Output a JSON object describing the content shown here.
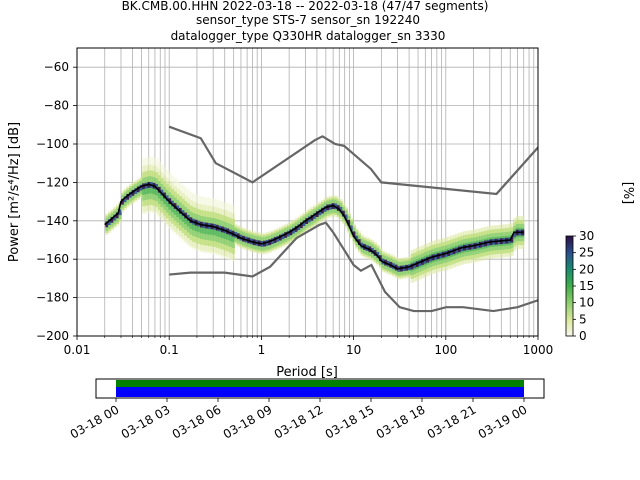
{
  "title_lines": [
    "BK.CMB.00.HHN   2022-03-18 -- 2022-03-18  (47/47 segments)",
    "sensor_type STS-7 sensor_sn 192240",
    "datalogger_type Q330HR datalogger_sn 3330"
  ],
  "chart_data": {
    "type": "heatmap",
    "description_of_marks": "probabilistic power spectral density with noise model curves and mean line",
    "xlabel": "Period [s]",
    "ylabel": "Power [m²/s⁴/Hz] [dB]",
    "xscale": "log",
    "xlim": [
      0.01,
      1000
    ],
    "ylim": [
      -200,
      -50
    ],
    "xticks": [
      {
        "v": 0.01,
        "label": "0.01"
      },
      {
        "v": 0.1,
        "label": "0.1"
      },
      {
        "v": 1,
        "label": "1"
      },
      {
        "v": 10,
        "label": "10"
      },
      {
        "v": 100,
        "label": "100"
      },
      {
        "v": 1000,
        "label": "1000"
      }
    ],
    "yticks": [
      -200,
      -180,
      -160,
      -140,
      -120,
      -100,
      -80,
      -60
    ],
    "grid": true,
    "noise_model_high": [
      [
        0.1,
        -91
      ],
      [
        0.22,
        -97
      ],
      [
        0.32,
        -110
      ],
      [
        0.8,
        -120
      ],
      [
        3.8,
        -98
      ],
      [
        4.6,
        -96
      ],
      [
        6.3,
        -100
      ],
      [
        7.9,
        -101
      ],
      [
        15.4,
        -113
      ],
      [
        20,
        -120
      ],
      [
        354.8,
        -126
      ],
      [
        10000,
        -48
      ]
    ],
    "noise_model_low": [
      [
        0.1,
        -168
      ],
      [
        0.17,
        -167
      ],
      [
        0.4,
        -167
      ],
      [
        0.8,
        -169
      ],
      [
        1.24,
        -164
      ],
      [
        2.4,
        -149
      ],
      [
        4.3,
        -142
      ],
      [
        5,
        -141
      ],
      [
        6,
        -146
      ],
      [
        10,
        -163
      ],
      [
        12,
        -166
      ],
      [
        15.6,
        -163
      ],
      [
        21.9,
        -177
      ],
      [
        31.6,
        -185
      ],
      [
        45,
        -187
      ],
      [
        70,
        -187
      ],
      [
        101,
        -185
      ],
      [
        154,
        -185
      ],
      [
        328,
        -187
      ],
      [
        600,
        -185
      ],
      [
        10000,
        -165
      ]
    ],
    "mean_curve": [
      [
        0.02,
        -142
      ],
      [
        0.025,
        -138
      ],
      [
        0.028,
        -136
      ],
      [
        0.03,
        -130
      ],
      [
        0.035,
        -127
      ],
      [
        0.04,
        -125
      ],
      [
        0.05,
        -122
      ],
      [
        0.06,
        -121
      ],
      [
        0.07,
        -122
      ],
      [
        0.08,
        -125
      ],
      [
        0.1,
        -130
      ],
      [
        0.13,
        -135
      ],
      [
        0.17,
        -140
      ],
      [
        0.22,
        -142
      ],
      [
        0.3,
        -143
      ],
      [
        0.4,
        -145
      ],
      [
        0.5,
        -147
      ],
      [
        0.6,
        -149
      ],
      [
        0.8,
        -151
      ],
      [
        1,
        -152
      ],
      [
        1.2,
        -151
      ],
      [
        1.5,
        -149
      ],
      [
        2,
        -146
      ],
      [
        2.5,
        -143
      ],
      [
        3,
        -140
      ],
      [
        3.5,
        -138
      ],
      [
        4,
        -136
      ],
      [
        5,
        -133
      ],
      [
        6,
        -132
      ],
      [
        7,
        -134
      ],
      [
        8,
        -138
      ],
      [
        9,
        -143
      ],
      [
        10,
        -148
      ],
      [
        12,
        -153
      ],
      [
        15,
        -155
      ],
      [
        18,
        -158
      ],
      [
        20,
        -161
      ],
      [
        25,
        -163
      ],
      [
        30,
        -165
      ],
      [
        40,
        -164
      ],
      [
        50,
        -162
      ],
      [
        70,
        -159
      ],
      [
        100,
        -157
      ],
      [
        150,
        -154
      ],
      [
        200,
        -153
      ],
      [
        300,
        -151
      ],
      [
        500,
        -150
      ],
      [
        550,
        -146
      ],
      [
        700,
        -146
      ]
    ],
    "colorbar": {
      "label": "[%]",
      "min": 0,
      "max": 30,
      "ticks": [
        0,
        5,
        10,
        15,
        20,
        25,
        30
      ]
    },
    "timeline": {
      "tick_labels": [
        "03-18 00",
        "03-18 03",
        "03-18 06",
        "03-18 09",
        "03-18 12",
        "03-18 15",
        "03-18 18",
        "03-18 21",
        "03-19 00"
      ],
      "coverage_color_top": "#008000",
      "coverage_color_bottom": "#0000ff"
    },
    "colors": {
      "noise_model": "#666666",
      "mean": "#000000"
    }
  }
}
